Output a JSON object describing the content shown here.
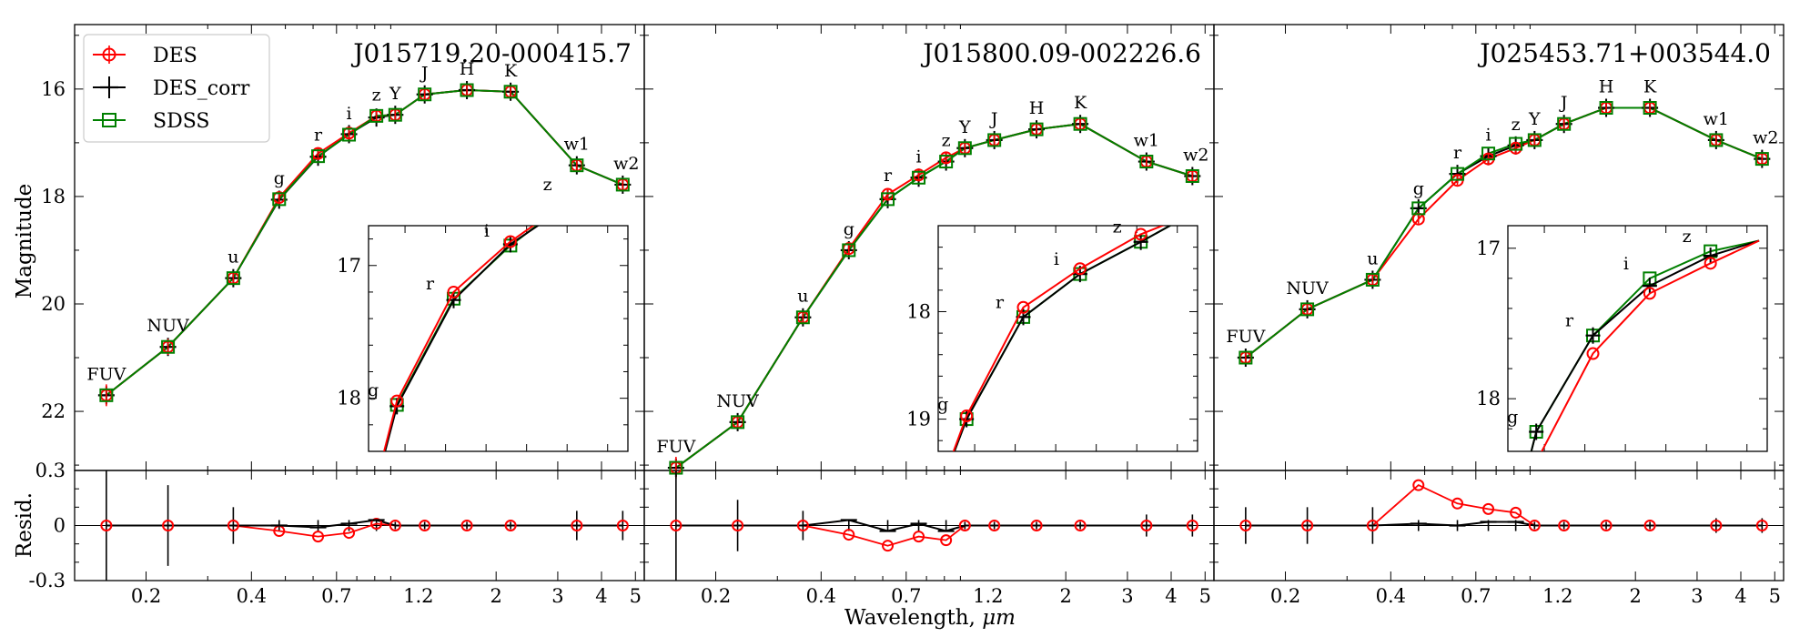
{
  "chart_data": {
    "type": "line",
    "xlabel_prefix": "Wavelength, ",
    "xlabel_unit": "μm",
    "ylabel": "Magnitude",
    "resid_ylabel": "Resid.",
    "x_scale": "log",
    "xlim": [
      0.125,
      5.3
    ],
    "main_ylim": [
      23.1,
      14.8
    ],
    "resid_ylim": [
      -0.3,
      0.3
    ],
    "x_ticks": [
      0.2,
      0.4,
      0.7,
      1.2,
      2,
      3,
      4,
      5
    ],
    "x_tick_labels": [
      "0.2",
      "0.4",
      "0.7",
      "1.2",
      "2",
      "3",
      "4",
      "5"
    ],
    "y_ticks": [
      16,
      18,
      20,
      22
    ],
    "y_tick_labels": [
      "16",
      "18",
      "20",
      "22"
    ],
    "resid_ticks": [
      0.3,
      0,
      -0.3
    ],
    "resid_tick_labels": [
      "0.3",
      "0",
      "-0.3"
    ],
    "legend": [
      "DES",
      "DES_corr",
      "SDSS"
    ],
    "colors": {
      "DES": "#ff0000",
      "DES_corr": "#000000",
      "SDSS": "#008000"
    },
    "bands": [
      "FUV",
      "NUV",
      "u",
      "g",
      "r",
      "i",
      "z",
      "Y",
      "J",
      "H",
      "K",
      "w1",
      "w2"
    ],
    "band_wavelengths": [
      0.154,
      0.231,
      0.355,
      0.48,
      0.62,
      0.76,
      0.91,
      1.03,
      1.25,
      1.65,
      2.2,
      3.4,
      4.6
    ],
    "panels": [
      {
        "title": "J015719.20-000415.7",
        "magnitudes": [
          21.7,
          20.8,
          19.52,
          18.05,
          17.25,
          16.85,
          16.5,
          16.48,
          16.1,
          16.02,
          16.05,
          17.42,
          17.78
        ],
        "series": [
          {
            "name": "DES",
            "wavelengths": [
              0.48,
              0.62,
              0.76,
              0.91
            ],
            "values": [
              18.02,
              17.2,
              16.82,
              16.5
            ]
          },
          {
            "name": "DES_corr",
            "wavelengths": [
              0.48,
              0.62,
              0.76,
              0.91
            ],
            "values": [
              18.06,
              17.26,
              16.84,
              16.53
            ]
          },
          {
            "name": "SDSS",
            "wavelengths": [
              0.48,
              0.62,
              0.76,
              0.91
            ],
            "values": [
              18.05,
              17.25,
              16.85,
              16.5
            ]
          }
        ],
        "labels_present": [
          "FUV",
          "NUV",
          "u",
          "g",
          "r",
          "i",
          "z",
          "Y",
          "J",
          "H",
          "K",
          "w1",
          "w2"
        ],
        "resid": {
          "DES": [
            0,
            0,
            0,
            -0.03,
            -0.06,
            -0.04,
            0.01,
            0,
            0,
            0,
            0,
            0,
            0
          ],
          "DES_corr": [
            0,
            0,
            0,
            0.0,
            -0.01,
            0.01,
            0.03,
            0,
            0,
            0,
            0,
            0,
            0
          ],
          "errors": [
            0.3,
            0.22,
            0.1,
            0.03,
            0.03,
            0.03,
            0.03,
            0.02,
            0.02,
            0.02,
            0.02,
            0.08,
            0.08
          ]
        },
        "inset": {
          "xlim": [
            0.41,
            1.05
          ],
          "ylim": [
            18.4,
            16.7
          ],
          "y_ticks": [
            17,
            18
          ],
          "y_tick_labels": [
            "17",
            "18"
          ],
          "x_ticks": [
            0.5,
            0.6,
            0.7,
            0.8,
            0.9,
            1.0
          ],
          "labels": [
            "g",
            "r",
            "i",
            "z"
          ]
        }
      },
      {
        "title": "J015800.09-002226.6",
        "magnitudes": [
          23.05,
          22.2,
          20.25,
          19.0,
          18.0,
          17.65,
          17.35,
          17.1,
          16.95,
          16.75,
          16.65,
          17.35,
          17.62
        ],
        "series": [
          {
            "name": "DES",
            "wavelengths": [
              0.48,
              0.62,
              0.76,
              0.91
            ],
            "values": [
              18.97,
              17.96,
              17.6,
              17.28
            ]
          },
          {
            "name": "DES_corr",
            "wavelengths": [
              0.48,
              0.62,
              0.76,
              0.91
            ],
            "values": [
              19.0,
              18.05,
              17.65,
              17.35
            ]
          },
          {
            "name": "SDSS",
            "wavelengths": [
              0.48,
              0.62,
              0.76,
              0.91
            ],
            "values": [
              19.0,
              18.05,
              17.65,
              17.35
            ]
          }
        ],
        "labels_present": [
          "FUV",
          "NUV",
          "u",
          "g",
          "r",
          "i",
          "z",
          "Y",
          "J",
          "H",
          "K",
          "w1",
          "w2"
        ],
        "resid": {
          "DES": [
            0,
            0,
            0,
            -0.05,
            -0.11,
            -0.06,
            -0.08,
            0,
            0,
            0,
            0,
            0,
            0
          ],
          "DES_corr": [
            0,
            0,
            0,
            0.03,
            -0.03,
            0.01,
            -0.03,
            0,
            0,
            0,
            0,
            0,
            0
          ],
          "errors": [
            0.3,
            0.14,
            0.08,
            0.03,
            0.03,
            0.03,
            0.03,
            0.02,
            0.02,
            0.02,
            0.02,
            0.06,
            0.06
          ]
        },
        "inset": {
          "xlim": [
            0.41,
            1.05
          ],
          "ylim": [
            19.3,
            17.2
          ],
          "y_ticks": [
            18,
            19
          ],
          "y_tick_labels": [
            "18",
            "19"
          ],
          "x_ticks": [
            0.5,
            0.6,
            0.7,
            0.8,
            0.9,
            1.0
          ],
          "labels": [
            "g",
            "r",
            "i",
            "z"
          ]
        }
      },
      {
        "title": "J025453.71+003544.0",
        "magnitudes": [
          21.0,
          20.1,
          19.55,
          18.25,
          17.58,
          17.25,
          17.05,
          16.95,
          16.65,
          16.35,
          16.35,
          16.95,
          17.3
        ],
        "series": [
          {
            "name": "DES",
            "wavelengths": [
              0.48,
              0.62,
              0.76,
              0.91
            ],
            "values": [
              18.42,
              17.7,
              17.3,
              17.1
            ]
          },
          {
            "name": "DES_corr",
            "wavelengths": [
              0.48,
              0.62,
              0.76,
              0.91
            ],
            "values": [
              18.22,
              17.58,
              17.25,
              17.05
            ]
          },
          {
            "name": "SDSS",
            "wavelengths": [
              0.48,
              0.62,
              0.76,
              0.91
            ],
            "values": [
              18.22,
              17.58,
              17.2,
              17.02
            ]
          }
        ],
        "labels_present": [
          "FUV",
          "NUV",
          "u",
          "g",
          "r",
          "i",
          "z",
          "Y",
          "J",
          "H",
          "K",
          "w1",
          "w2"
        ],
        "resid": {
          "DES": [
            0,
            0,
            0,
            0.22,
            0.12,
            0.09,
            0.07,
            0,
            0,
            0,
            0,
            0,
            0
          ],
          "DES_corr": [
            0,
            0,
            0,
            0.01,
            0.0,
            0.02,
            0.02,
            0,
            0,
            0,
            0,
            0,
            0
          ],
          "errors": [
            0.1,
            0.1,
            0.1,
            0.03,
            0.03,
            0.03,
            0.03,
            0.02,
            0.02,
            0.02,
            0.02,
            0.04,
            0.04
          ]
        },
        "inset": {
          "xlim": [
            0.41,
            1.05
          ],
          "ylim": [
            18.35,
            16.85
          ],
          "y_ticks": [
            17,
            18
          ],
          "y_tick_labels": [
            "17",
            "18"
          ],
          "x_ticks": [
            0.5,
            0.6,
            0.7,
            0.8,
            0.9,
            1.0
          ],
          "labels": [
            "g",
            "r",
            "i",
            "z"
          ]
        }
      }
    ]
  }
}
